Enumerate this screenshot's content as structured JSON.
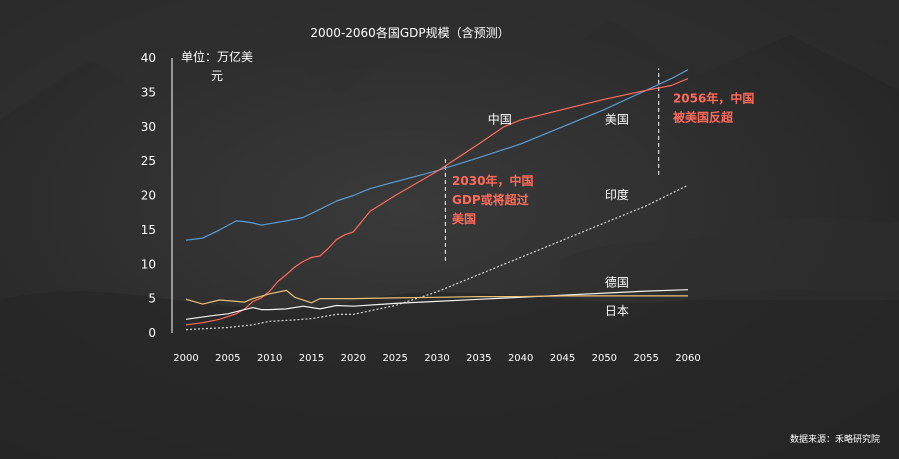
{
  "chart_data": {
    "type": "line",
    "title": "2000-2060各国GDP规模（含预测）",
    "ylabel_line1": "单位：万亿美",
    "ylabel_line2": "元",
    "x_ticks": [
      "2000",
      "2005",
      "2010",
      "2015",
      "2020",
      "2025",
      "2030",
      "2035",
      "2040",
      "2045",
      "2050",
      "2055",
      "2060"
    ],
    "y_ticks": [
      "0",
      "5",
      "10",
      "15",
      "20",
      "25",
      "30",
      "35",
      "40"
    ],
    "xlim": [
      2000,
      2060
    ],
    "ylim": [
      0,
      40
    ],
    "grid": false,
    "series": [
      {
        "name": "美国",
        "color": "#5b9bd5",
        "dash": "",
        "points": [
          [
            2000,
            13.5
          ],
          [
            2002,
            13.8
          ],
          [
            2004,
            15.0
          ],
          [
            2006,
            16.3
          ],
          [
            2007,
            16.2
          ],
          [
            2008,
            16.0
          ],
          [
            2009,
            15.7
          ],
          [
            2010,
            15.9
          ],
          [
            2012,
            16.3
          ],
          [
            2014,
            16.8
          ],
          [
            2016,
            18.0
          ],
          [
            2018,
            19.2
          ],
          [
            2020,
            20.0
          ],
          [
            2022,
            21.0
          ],
          [
            2025,
            22.0
          ],
          [
            2030,
            23.6
          ],
          [
            2035,
            25.5
          ],
          [
            2040,
            27.5
          ],
          [
            2045,
            30.0
          ],
          [
            2050,
            32.5
          ],
          [
            2055,
            35.3
          ],
          [
            2058,
            37.0
          ],
          [
            2060,
            38.3
          ]
        ]
      },
      {
        "name": "中国",
        "color": "#ff6b5b",
        "dash": "",
        "points": [
          [
            2000,
            1.2
          ],
          [
            2002,
            1.5
          ],
          [
            2004,
            2.0
          ],
          [
            2006,
            2.8
          ],
          [
            2007,
            3.5
          ],
          [
            2008,
            4.6
          ],
          [
            2009,
            5.1
          ],
          [
            2010,
            6.1
          ],
          [
            2011,
            7.5
          ],
          [
            2012,
            8.5
          ],
          [
            2013,
            9.6
          ],
          [
            2014,
            10.4
          ],
          [
            2015,
            11.0
          ],
          [
            2016,
            11.2
          ],
          [
            2017,
            12.3
          ],
          [
            2018,
            13.6
          ],
          [
            2019,
            14.3
          ],
          [
            2020,
            14.7
          ],
          [
            2022,
            17.7
          ],
          [
            2025,
            20.0
          ],
          [
            2030,
            23.5
          ],
          [
            2035,
            27.5
          ],
          [
            2038,
            30.0
          ],
          [
            2040,
            31.0
          ],
          [
            2045,
            32.5
          ],
          [
            2050,
            34.0
          ],
          [
            2055,
            35.3
          ],
          [
            2058,
            36.0
          ],
          [
            2060,
            37.0
          ]
        ]
      },
      {
        "name": "印度",
        "color": "#d9d9d9",
        "dash": "2 2",
        "points": [
          [
            2000,
            0.5
          ],
          [
            2005,
            0.8
          ],
          [
            2008,
            1.2
          ],
          [
            2010,
            1.7
          ],
          [
            2013,
            1.9
          ],
          [
            2015,
            2.1
          ],
          [
            2018,
            2.7
          ],
          [
            2020,
            2.7
          ],
          [
            2025,
            4.0
          ],
          [
            2030,
            6.0
          ],
          [
            2035,
            8.5
          ],
          [
            2040,
            11.0
          ],
          [
            2045,
            13.5
          ],
          [
            2050,
            16.0
          ],
          [
            2055,
            18.5
          ],
          [
            2060,
            21.5
          ]
        ]
      },
      {
        "name": "德国",
        "color": "#f2f2f2",
        "dash": "",
        "points": [
          [
            2000,
            2.0
          ],
          [
            2003,
            2.5
          ],
          [
            2005,
            2.8
          ],
          [
            2007,
            3.4
          ],
          [
            2008,
            3.7
          ],
          [
            2009,
            3.4
          ],
          [
            2010,
            3.4
          ],
          [
            2012,
            3.5
          ],
          [
            2014,
            3.9
          ],
          [
            2016,
            3.5
          ],
          [
            2018,
            4.0
          ],
          [
            2020,
            3.9
          ],
          [
            2025,
            4.3
          ],
          [
            2030,
            4.6
          ],
          [
            2035,
            4.9
          ],
          [
            2040,
            5.2
          ],
          [
            2045,
            5.5
          ],
          [
            2050,
            5.8
          ],
          [
            2055,
            6.1
          ],
          [
            2060,
            6.3
          ]
        ]
      },
      {
        "name": "日本",
        "color": "#e8c27a",
        "dash": "",
        "points": [
          [
            2000,
            4.9
          ],
          [
            2002,
            4.2
          ],
          [
            2004,
            4.8
          ],
          [
            2006,
            4.6
          ],
          [
            2007,
            4.5
          ],
          [
            2008,
            5.0
          ],
          [
            2010,
            5.7
          ],
          [
            2012,
            6.2
          ],
          [
            2013,
            5.2
          ],
          [
            2015,
            4.4
          ],
          [
            2016,
            5.0
          ],
          [
            2018,
            5.0
          ],
          [
            2020,
            5.0
          ],
          [
            2025,
            5.1
          ],
          [
            2030,
            5.2
          ],
          [
            2035,
            5.3
          ],
          [
            2040,
            5.3
          ],
          [
            2045,
            5.4
          ],
          [
            2050,
            5.4
          ],
          [
            2055,
            5.4
          ],
          [
            2060,
            5.4
          ]
        ]
      }
    ],
    "series_labels": [
      {
        "text": "中国",
        "x": 2037.5,
        "y": 30.5
      },
      {
        "text": "美国",
        "x": 2051.5,
        "y": 30.5
      },
      {
        "text": "印度",
        "x": 2051.5,
        "y": 19.5
      },
      {
        "text": "德国",
        "x": 2051.5,
        "y": 6.8
      },
      {
        "text": "日本",
        "x": 2051.5,
        "y": 2.6
      }
    ],
    "reference_lines": [
      {
        "x": 2031,
        "y_from": 10.5,
        "y_to": 25.5
      },
      {
        "x": 2056.5,
        "y_from": 23,
        "y_to": 38.5
      }
    ],
    "annotations": [
      {
        "lines": [
          "2030年，中国",
          "GDP或将超过",
          "美国"
        ],
        "x": 2031.8,
        "y": 21.5,
        "color": "#ff6b5b"
      },
      {
        "lines": [
          "2056年，中国",
          "被美国反超"
        ],
        "x": 2058.2,
        "y": 33.5,
        "color": "#ff6b5b"
      }
    ],
    "source": "数据来源：禾略研究院"
  }
}
